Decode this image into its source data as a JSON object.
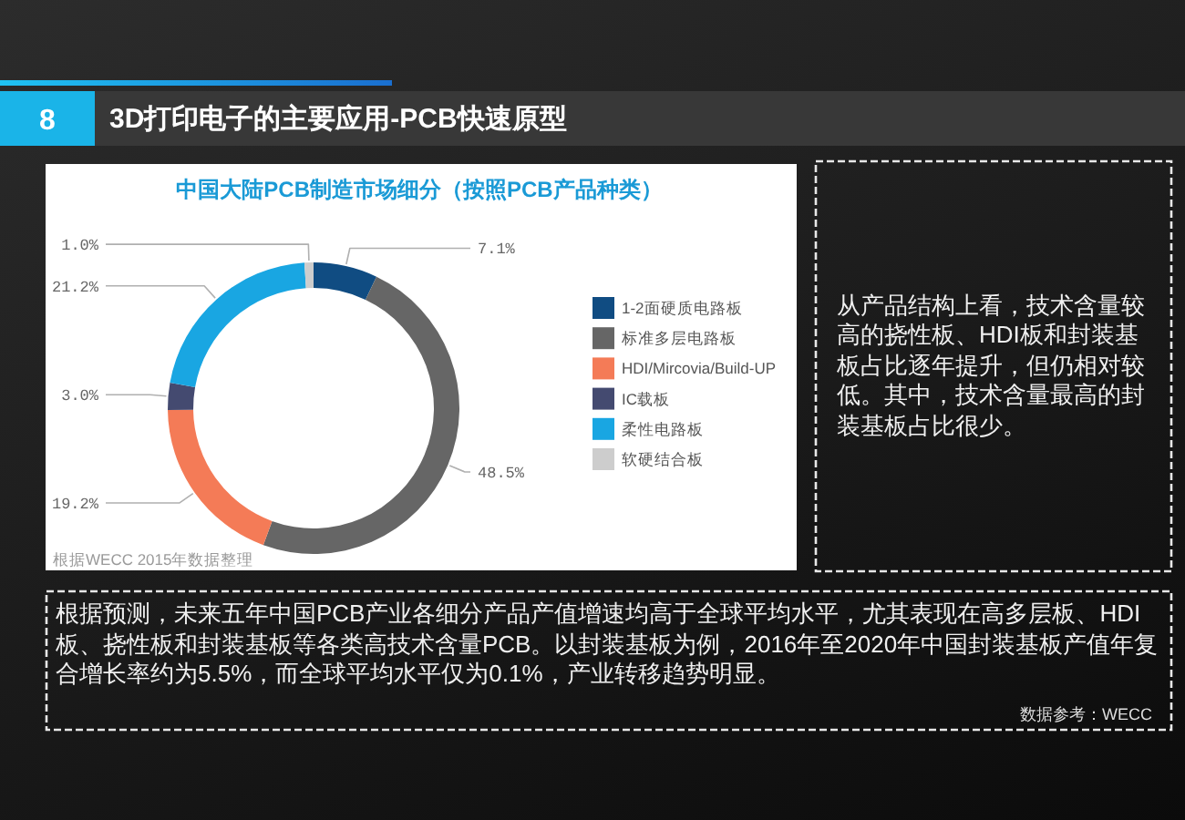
{
  "chart_data": {
    "type": "donut",
    "title": "中国大陆PCB制造市场细分（按照PCB产品种类）",
    "categories": [
      "1-2面硬质电路板",
      "标准多层电路板",
      "HDI/Mircovia/Build-UP",
      "IC载板",
      "柔性电路板",
      "软硬结合板"
    ],
    "values": [
      7.1,
      48.5,
      19.2,
      3.0,
      21.2,
      1.0
    ],
    "colors": [
      "#104c82",
      "#666666",
      "#f47b57",
      "#444a70",
      "#19a6e2",
      "#cdcdcd"
    ],
    "value_labels": [
      "7.1%",
      "48.5%",
      "19.2%",
      "3.0%",
      "21.2%",
      "1.0%"
    ],
    "legend": "right",
    "annotations": [
      "8",
      "3D打印电子的主要应用-PCB快速原型",
      "根据WECC 2015年数据整理",
      "从产品结构上看，技术含量较高的挠性板、HDI板和封装基板占比逐年提升，但仍相对较低。其中，技术含量最高的封装基板占比很少。",
      "根据预测，未来五年中国PCB产业各细分产品产值增速均高于全球平均水平，尤其表现在高多层板、HDI板、挠性板和封装基板等各类高技术含量PCB。以封装基板为例，2016年至2020年中国封装基板产值年复合增长率约为5.5%，而全球平均水平仅为0.1%，产业转移趋势明显。",
      "数据参考：WECC"
    ]
  }
}
